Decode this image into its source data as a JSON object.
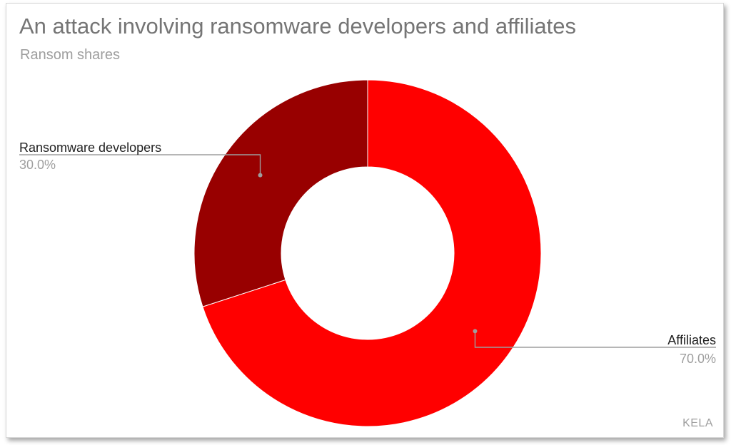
{
  "chart_data": {
    "type": "pie",
    "donut": true,
    "title": "An attack involving ransomware developers and affiliates",
    "subtitle": "Ransom shares",
    "slices": [
      {
        "label": "Affiliates",
        "value": 70.0,
        "display": "70.0%",
        "color": "#ff0000"
      },
      {
        "label": "Ransomware developers",
        "value": 30.0,
        "display": "30.0%",
        "color": "#980000"
      }
    ],
    "legend": "none",
    "data_labels": "outside-with-leader-lines"
  },
  "colors": {
    "label_text": "#212121",
    "value_text": "#9e9e9e",
    "leader_line": "#9e9e9e"
  },
  "watermark": "KELA"
}
